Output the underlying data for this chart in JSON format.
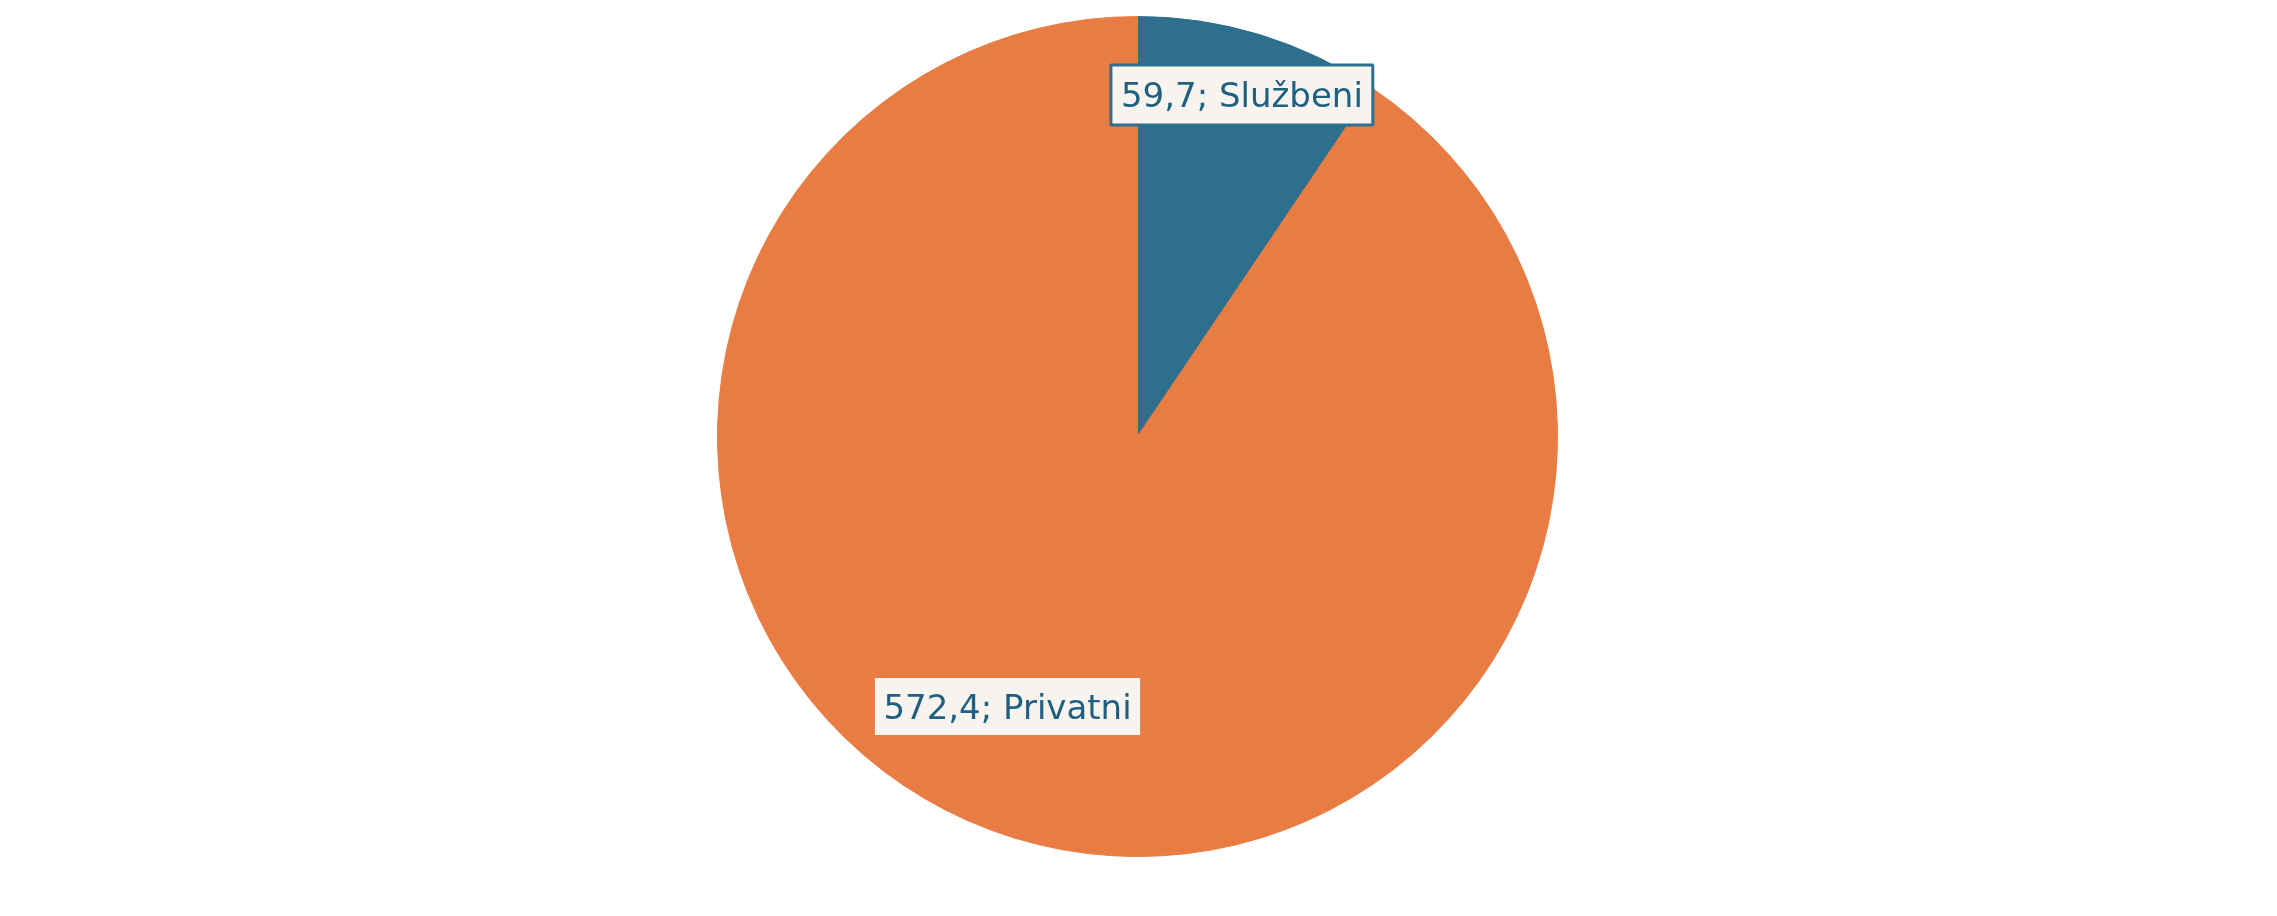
{
  "chart_data": {
    "type": "pie",
    "categories": [
      "Službeni",
      "Privatni"
    ],
    "values": [
      59.7,
      572.4
    ],
    "colors": [
      "#2e6f8e",
      "#e97c43"
    ],
    "value_labels": [
      "59,7",
      "572,4"
    ]
  }
}
